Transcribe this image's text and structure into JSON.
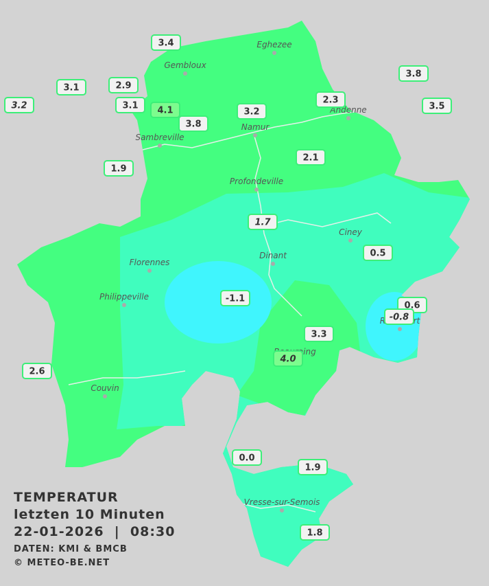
{
  "legend": {
    "title": "TEMPERATUR",
    "period": "letzten 10 Minuten",
    "datetime": "22-01-2026  |  08:30",
    "source": "DATEN: KMI & BMCB",
    "copyright": "© METEO-BE.NET"
  },
  "cities": [
    "Eghezee",
    "Gembloux",
    "Andenne",
    "Namur",
    "Sambreville",
    "Profondeville",
    "Ciney",
    "Florennes",
    "Dinant",
    "Philippeville",
    "Beauraing",
    "Rochefort",
    "Couvin",
    "Vresse-sur-Semois"
  ],
  "stations": [
    {
      "value": "3.4"
    },
    {
      "value": "3.1"
    },
    {
      "value": "2.9"
    },
    {
      "value": "3.2",
      "italic": true
    },
    {
      "value": "3.1"
    },
    {
      "value": "4.1",
      "highlight": true
    },
    {
      "value": "3.2"
    },
    {
      "value": "3.8"
    },
    {
      "value": "2.3"
    },
    {
      "value": "3.8"
    },
    {
      "value": "3.5"
    },
    {
      "value": "2.1"
    },
    {
      "value": "1.9"
    },
    {
      "value": "1.7",
      "italic": true
    },
    {
      "value": "0.5"
    },
    {
      "value": "-1.1"
    },
    {
      "value": "0.6"
    },
    {
      "value": "-0.8",
      "italic": true
    },
    {
      "value": "3.3"
    },
    {
      "value": "4.0",
      "italic": true,
      "highlight": true
    },
    {
      "value": "2.6"
    },
    {
      "value": "0.0"
    },
    {
      "value": "1.9"
    },
    {
      "value": "1.8"
    }
  ]
}
